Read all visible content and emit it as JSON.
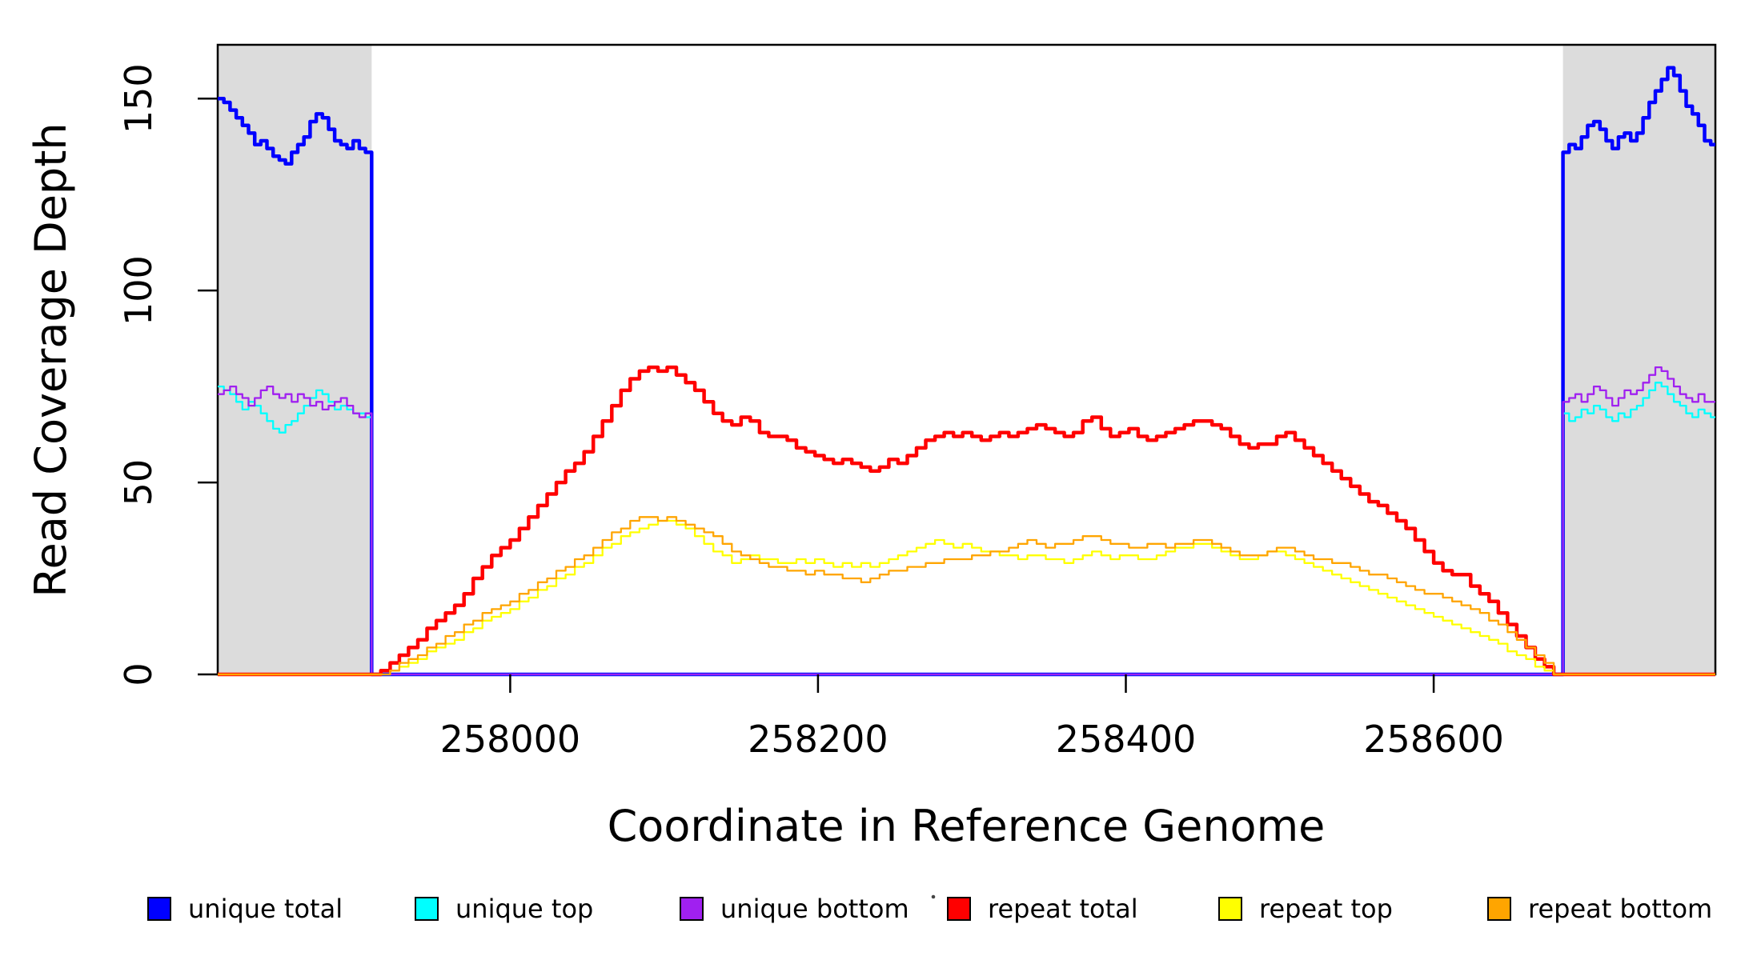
{
  "chart_data": {
    "type": "line",
    "title": "",
    "xlabel": "Coordinate in Reference Genome",
    "ylabel": "Read Coverage Depth",
    "x_axis": {
      "range": [
        257810,
        258783
      ],
      "ticks": [
        258000,
        258200,
        258400,
        258600
      ],
      "tick_labels": [
        "258000",
        "258200",
        "258400",
        "258600"
      ]
    },
    "y_axis": {
      "range": [
        0,
        164
      ],
      "ticks": [
        0,
        50,
        100,
        150
      ],
      "tick_labels": [
        "0",
        "50",
        "100",
        "150"
      ]
    },
    "grid": false,
    "legend_position": "bottom",
    "colors": {
      "axis": "#000000",
      "shaded_band": "#DCDCDC",
      "unique_total": "#0000FF",
      "unique_top": "#00FFFF",
      "unique_bottom": "#A020F0",
      "repeat_total": "#FF0000",
      "repeat_top": "#FFFF00",
      "repeat_bottom": "#FFA500"
    },
    "shaded_regions": [
      {
        "x_start": 257810,
        "x_end": 257910
      },
      {
        "x_start": 258684,
        "x_end": 258783
      }
    ],
    "legend": [
      {
        "label": "unique total",
        "color": "#0000FF"
      },
      {
        "label": "unique top",
        "color": "#00FFFF"
      },
      {
        "label": "unique bottom",
        "color": "#A020F0"
      },
      {
        "label": "repeat total",
        "color": "#FF0000"
      },
      {
        "label": "repeat top",
        "color": "#FFFF00"
      },
      {
        "label": "repeat bottom",
        "color": "#FFA500"
      }
    ],
    "series": [
      {
        "key": "unique_total",
        "name": "unique total",
        "color": "#0000FF",
        "width": 4.5,
        "segments": [
          {
            "x0": 257810,
            "dx": 4,
            "values": [
              150,
              149,
              147,
              145,
              143,
              141,
              138,
              139,
              137,
              135,
              134,
              133,
              136,
              138,
              140,
              144,
              146,
              145,
              142,
              139,
              138,
              137,
              139,
              137,
              136
            ]
          },
          {
            "x0": 257910,
            "dx": 772,
            "values": [
              0,
              0
            ]
          },
          {
            "x0": 258684,
            "dx": 4,
            "values": [
              136,
              138,
              137,
              140,
              143,
              144,
              142,
              139,
              137,
              140,
              141,
              139,
              141,
              145,
              149,
              152,
              155,
              158,
              156,
              152,
              148,
              146,
              143,
              139,
              138
            ]
          }
        ]
      },
      {
        "key": "unique_top",
        "name": "unique top",
        "color": "#00FFFF",
        "width": 2.3,
        "segments": [
          {
            "x0": 257810,
            "dx": 4,
            "values": [
              75,
              74,
              73,
              71,
              69,
              71,
              70,
              68,
              66,
              64,
              63,
              65,
              66,
              68,
              70,
              72,
              74,
              73,
              71,
              69,
              70,
              69,
              68,
              68,
              67
            ]
          },
          {
            "x0": 257910,
            "dx": 772,
            "values": [
              0,
              0
            ]
          },
          {
            "x0": 258684,
            "dx": 4,
            "values": [
              68,
              66,
              67,
              69,
              68,
              70,
              69,
              67,
              66,
              68,
              67,
              69,
              70,
              72,
              74,
              76,
              75,
              73,
              71,
              70,
              68,
              67,
              69,
              68,
              67
            ]
          }
        ]
      },
      {
        "key": "unique_bottom",
        "name": "unique bottom",
        "color": "#A020F0",
        "width": 2.3,
        "segments": [
          {
            "x0": 257810,
            "dx": 4,
            "values": [
              73,
              74,
              75,
              73,
              72,
              70,
              72,
              74,
              75,
              73,
              72,
              73,
              71,
              73,
              72,
              70,
              71,
              69,
              70,
              71,
              72,
              70,
              68,
              67,
              68
            ]
          },
          {
            "x0": 257910,
            "dx": 772,
            "values": [
              0,
              0
            ]
          },
          {
            "x0": 258684,
            "dx": 4,
            "values": [
              71,
              72,
              73,
              71,
              73,
              75,
              74,
              72,
              70,
              72,
              74,
              73,
              74,
              76,
              78,
              80,
              79,
              77,
              75,
              73,
              72,
              71,
              73,
              71,
              71
            ]
          }
        ]
      },
      {
        "key": "repeat_total",
        "name": "repeat total",
        "color": "#FF0000",
        "width": 4.5,
        "segments": [
          {
            "x0": 257810,
            "dx": 100,
            "values": [
              0,
              0
            ]
          },
          {
            "x0": 257916,
            "dx": 6,
            "values": [
              1,
              3,
              5,
              7,
              9,
              12,
              14,
              16,
              18,
              21,
              25,
              28,
              31,
              33,
              35,
              38,
              41,
              44,
              47,
              50,
              53,
              55,
              58,
              62,
              66,
              70,
              74,
              77,
              79,
              80,
              79,
              80,
              78,
              76,
              74,
              71,
              68,
              66,
              65,
              67,
              66,
              63,
              62,
              62,
              61,
              59,
              58,
              57,
              56,
              55,
              56,
              55,
              54,
              53,
              54,
              56,
              55,
              57,
              59,
              61,
              62,
              63,
              62,
              63,
              62,
              61,
              62,
              63,
              62,
              63,
              64,
              65,
              64,
              63,
              62,
              63,
              66,
              67,
              64,
              62,
              63,
              64,
              62,
              61,
              62,
              63,
              64,
              65,
              66,
              66,
              65,
              64,
              62,
              60,
              59,
              60,
              60,
              62,
              63,
              61,
              59,
              57,
              55,
              53,
              51,
              49,
              47,
              45,
              44,
              42,
              40,
              38,
              35,
              32,
              29,
              27,
              26,
              26,
              23,
              21,
              19,
              16,
              13,
              10,
              7,
              4,
              2,
              0
            ]
          }
        ]
      },
      {
        "key": "repeat_top",
        "name": "repeat top",
        "color": "#FFFF00",
        "width": 2.3,
        "segments": [
          {
            "x0": 257810,
            "dx": 100,
            "values": [
              0,
              0
            ]
          },
          {
            "x0": 257916,
            "dx": 6,
            "values": [
              0,
              1,
              2,
              3,
              4,
              6,
              7,
              8,
              9,
              11,
              12,
              14,
              15,
              16,
              17,
              19,
              20,
              22,
              23,
              25,
              26,
              28,
              29,
              31,
              33,
              34,
              36,
              37,
              38,
              39,
              40,
              40,
              39,
              38,
              36,
              34,
              32,
              31,
              29,
              30,
              31,
              30,
              30,
              29,
              29,
              30,
              29,
              30,
              29,
              28,
              29,
              28,
              29,
              28,
              29,
              30,
              31,
              32,
              33,
              34,
              35,
              34,
              33,
              34,
              33,
              32,
              32,
              31,
              31,
              30,
              31,
              31,
              30,
              30,
              29,
              30,
              31,
              32,
              31,
              30,
              31,
              31,
              30,
              30,
              31,
              32,
              33,
              33,
              34,
              34,
              33,
              32,
              31,
              30,
              30,
              31,
              32,
              32,
              31,
              30,
              29,
              28,
              27,
              26,
              25,
              24,
              23,
              22,
              21,
              20,
              19,
              18,
              17,
              16,
              15,
              14,
              13,
              12,
              11,
              10,
              9,
              8,
              6,
              5,
              4,
              2,
              1,
              0
            ]
          }
        ]
      },
      {
        "key": "repeat_bottom",
        "name": "repeat bottom",
        "color": "#FFA500",
        "width": 2.3,
        "segments": [
          {
            "x0": 257810,
            "dx": 100,
            "values": [
              0,
              0
            ]
          },
          {
            "x0": 257916,
            "dx": 6,
            "values": [
              0,
              1,
              3,
              4,
              5,
              7,
              8,
              10,
              11,
              13,
              14,
              16,
              17,
              18,
              19,
              21,
              22,
              24,
              25,
              27,
              28,
              30,
              31,
              33,
              35,
              37,
              38,
              40,
              41,
              41,
              40,
              41,
              40,
              39,
              38,
              37,
              36,
              34,
              32,
              31,
              30,
              29,
              28,
              28,
              27,
              27,
              26,
              27,
              26,
              26,
              25,
              25,
              24,
              25,
              26,
              27,
              27,
              28,
              28,
              29,
              29,
              30,
              30,
              30,
              31,
              31,
              32,
              32,
              33,
              34,
              35,
              34,
              33,
              34,
              34,
              35,
              36,
              36,
              35,
              34,
              34,
              33,
              33,
              34,
              34,
              33,
              34,
              34,
              35,
              35,
              34,
              33,
              32,
              31,
              31,
              31,
              32,
              33,
              33,
              32,
              31,
              30,
              30,
              29,
              29,
              28,
              27,
              26,
              26,
              25,
              24,
              23,
              22,
              21,
              21,
              20,
              19,
              18,
              17,
              16,
              14,
              13,
              11,
              9,
              7,
              5,
              3,
              0
            ]
          }
        ]
      }
    ]
  }
}
